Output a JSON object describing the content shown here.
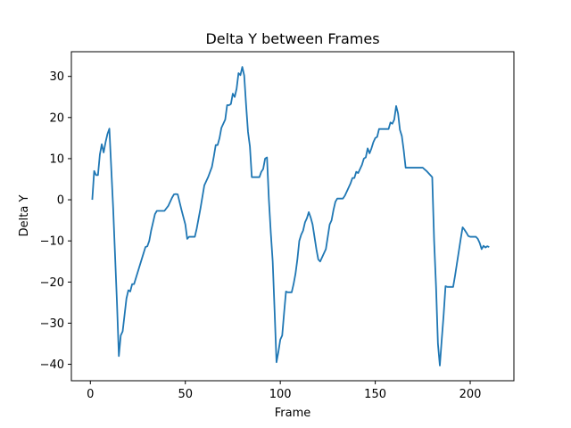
{
  "chart_data": {
    "type": "line",
    "title": "Delta Y between Frames",
    "xlabel": "Frame",
    "ylabel": "Delta Y",
    "xlim": [
      -10,
      223
    ],
    "ylim": [
      -44,
      36
    ],
    "xticks": [
      0,
      50,
      100,
      150,
      200
    ],
    "yticks": [
      -40,
      -30,
      -20,
      -10,
      0,
      10,
      20,
      30
    ],
    "grid": false,
    "legend": "none",
    "series": [
      {
        "color": "#1f77b4",
        "points": [
          [
            1,
            0
          ],
          [
            2,
            7
          ],
          [
            3,
            6
          ],
          [
            4,
            6
          ],
          [
            5,
            11
          ],
          [
            6,
            13.5
          ],
          [
            7,
            11.5
          ],
          [
            8,
            14
          ],
          [
            9,
            16
          ],
          [
            10,
            17.3
          ],
          [
            12,
            -2
          ],
          [
            14,
            -25
          ],
          [
            15,
            -38
          ],
          [
            16,
            -33
          ],
          [
            17,
            -32
          ],
          [
            18,
            -28
          ],
          [
            19,
            -24
          ],
          [
            20,
            -22
          ],
          [
            21,
            -22.3
          ],
          [
            22,
            -20.5
          ],
          [
            23,
            -20.5
          ],
          [
            25,
            -17.5
          ],
          [
            27,
            -14.5
          ],
          [
            29,
            -11.5
          ],
          [
            30,
            -11.3
          ],
          [
            31,
            -10
          ],
          [
            32,
            -7.5
          ],
          [
            33,
            -5.5
          ],
          [
            34,
            -3.5
          ],
          [
            35,
            -2.7
          ],
          [
            36,
            -2.7
          ],
          [
            38,
            -2.7
          ],
          [
            39,
            -2.7
          ],
          [
            41,
            -1.5
          ],
          [
            43,
            0.5
          ],
          [
            44,
            1.3
          ],
          [
            45,
            1.4
          ],
          [
            46,
            1.3
          ],
          [
            48,
            -2.5
          ],
          [
            50,
            -6
          ],
          [
            51,
            -9.5
          ],
          [
            52,
            -9
          ],
          [
            53,
            -9
          ],
          [
            54,
            -9
          ],
          [
            55,
            -9
          ],
          [
            56,
            -7
          ],
          [
            58,
            -2
          ],
          [
            60,
            3.5
          ],
          [
            62,
            5.5
          ],
          [
            64,
            8
          ],
          [
            65,
            10.5
          ],
          [
            66,
            13.3
          ],
          [
            67,
            13.3
          ],
          [
            68,
            15
          ],
          [
            69,
            17.5
          ],
          [
            70,
            18.5
          ],
          [
            71,
            19.5
          ],
          [
            72,
            23
          ],
          [
            73,
            23
          ],
          [
            74,
            23.3
          ],
          [
            75,
            25.8
          ],
          [
            76,
            25
          ],
          [
            77,
            27
          ],
          [
            78,
            30.8
          ],
          [
            79,
            30.3
          ],
          [
            80,
            32.3
          ],
          [
            81,
            30.2
          ],
          [
            82,
            23
          ],
          [
            83,
            16.5
          ],
          [
            84,
            13
          ],
          [
            85,
            5.5
          ],
          [
            86,
            5.5
          ],
          [
            87,
            5.5
          ],
          [
            88,
            5.5
          ],
          [
            89,
            5.5
          ],
          [
            90,
            6.8
          ],
          [
            91,
            7.5
          ],
          [
            92,
            10
          ],
          [
            93,
            10.3
          ],
          [
            94,
            0
          ],
          [
            95,
            -8
          ],
          [
            96,
            -15
          ],
          [
            97,
            -27
          ],
          [
            98,
            -39.5
          ],
          [
            99,
            -37
          ],
          [
            100,
            -34
          ],
          [
            101,
            -33
          ],
          [
            102,
            -27.5
          ],
          [
            103,
            -22.3
          ],
          [
            104,
            -22.5
          ],
          [
            105,
            -22.5
          ],
          [
            106,
            -22.5
          ],
          [
            107,
            -20.5
          ],
          [
            108,
            -18
          ],
          [
            109,
            -14.5
          ],
          [
            110,
            -10
          ],
          [
            111,
            -8.5
          ],
          [
            112,
            -7.5
          ],
          [
            113,
            -5.5
          ],
          [
            114,
            -4.5
          ],
          [
            115,
            -3
          ],
          [
            116,
            -4.3
          ],
          [
            117,
            -6
          ],
          [
            118,
            -9
          ],
          [
            119,
            -12
          ],
          [
            120,
            -14.5
          ],
          [
            121,
            -15
          ],
          [
            122,
            -14
          ],
          [
            123,
            -13
          ],
          [
            124,
            -12
          ],
          [
            125,
            -9
          ],
          [
            126,
            -6
          ],
          [
            127,
            -5
          ],
          [
            128,
            -2.5
          ],
          [
            129,
            -0.5
          ],
          [
            130,
            0.3
          ],
          [
            131,
            0.3
          ],
          [
            132,
            0.3
          ],
          [
            133,
            0.3
          ],
          [
            134,
            1
          ],
          [
            135,
            2
          ],
          [
            136,
            3
          ],
          [
            137,
            4
          ],
          [
            138,
            5.3
          ],
          [
            139,
            5.3
          ],
          [
            140,
            6.8
          ],
          [
            141,
            6.5
          ],
          [
            142,
            7.5
          ],
          [
            143,
            8.5
          ],
          [
            144,
            10
          ],
          [
            145,
            10.3
          ],
          [
            146,
            12.5
          ],
          [
            147,
            11.3
          ],
          [
            148,
            12.5
          ],
          [
            149,
            14
          ],
          [
            150,
            15
          ],
          [
            151,
            15.3
          ],
          [
            152,
            17.2
          ],
          [
            153,
            17.2
          ],
          [
            154,
            17.2
          ],
          [
            155,
            17.2
          ],
          [
            156,
            17.2
          ],
          [
            157,
            17.2
          ],
          [
            158,
            18.8
          ],
          [
            159,
            18.5
          ],
          [
            160,
            19.5
          ],
          [
            161,
            22.8
          ],
          [
            162,
            21
          ],
          [
            163,
            17
          ],
          [
            164,
            15.5
          ],
          [
            165,
            12
          ],
          [
            166,
            7.8
          ],
          [
            167,
            7.8
          ],
          [
            169,
            7.8
          ],
          [
            171,
            7.8
          ],
          [
            173,
            7.8
          ],
          [
            175,
            7.8
          ],
          [
            177,
            7
          ],
          [
            179,
            6
          ],
          [
            180,
            5.5
          ],
          [
            181,
            -10
          ],
          [
            182,
            -21
          ],
          [
            183,
            -35
          ],
          [
            184,
            -40.3
          ],
          [
            185,
            -34
          ],
          [
            186,
            -28
          ],
          [
            187,
            -21
          ],
          [
            188,
            -21.2
          ],
          [
            189,
            -21.2
          ],
          [
            190,
            -21.2
          ],
          [
            191,
            -21.2
          ],
          [
            192,
            -18.5
          ],
          [
            193,
            -15.5
          ],
          [
            194,
            -12.5
          ],
          [
            195,
            -9.5
          ],
          [
            196,
            -6.7
          ],
          [
            197,
            -7.3
          ],
          [
            198,
            -8
          ],
          [
            199,
            -8.8
          ],
          [
            200,
            -9
          ],
          [
            201,
            -9
          ],
          [
            202,
            -9
          ],
          [
            203,
            -9
          ],
          [
            204,
            -9.5
          ],
          [
            205,
            -10.5
          ],
          [
            206,
            -12
          ],
          [
            207,
            -11.2
          ],
          [
            208,
            -11.6
          ],
          [
            209,
            -11.3
          ],
          [
            210,
            -11.5
          ]
        ]
      }
    ]
  }
}
